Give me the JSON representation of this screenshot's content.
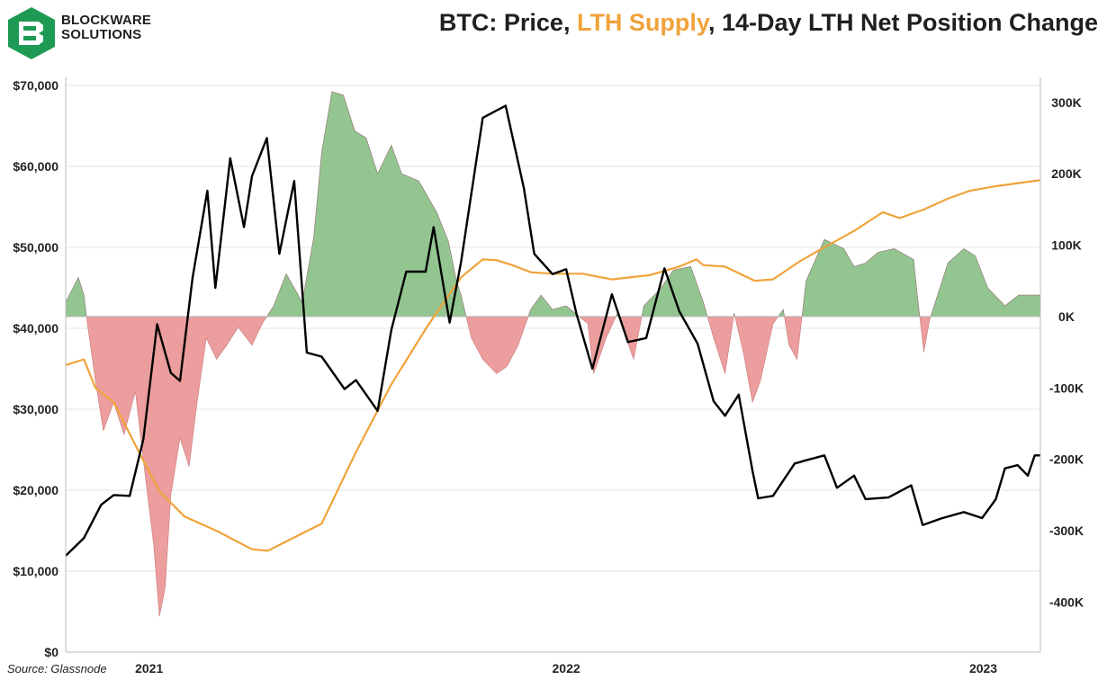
{
  "header": {
    "brand_line1": "BLOCKWARE",
    "brand_line2": "SOLUTIONS",
    "title_part1": "BTC: Price, ",
    "title_highlight": "LTH Supply",
    "title_part2": ", 14-Day LTH Net Position Change"
  },
  "source": "Source: Glassnode",
  "colors": {
    "price": "#000000",
    "lth_supply": "#f0a33a",
    "positive_fill": "#93c591",
    "negative_fill": "#ec9d9d",
    "brand_green": "#1e9a54"
  },
  "chart_data": {
    "type": "line",
    "x_ticks": [
      {
        "label": "2021",
        "date": "2021-01-01"
      },
      {
        "label": "2022",
        "date": "2022-01-01"
      },
      {
        "label": "2023",
        "date": "2023-01-01"
      }
    ],
    "x_range": [
      "2020-10-20",
      "2023-02-20"
    ],
    "left_axis": {
      "ticks": [
        "$0",
        "$10,000",
        "$20,000",
        "$30,000",
        "$40,000",
        "$50,000",
        "$60,000",
        "$70,000"
      ],
      "range": [
        0,
        70000
      ]
    },
    "right_axis": {
      "ticks": [
        "300K",
        "200K",
        "100K",
        "0K",
        "-100K",
        "-200K",
        "-300K",
        "-400K"
      ],
      "range": [
        -470000,
        335000
      ]
    },
    "grid": "horizontal",
    "series": [
      {
        "name": "Price",
        "axis": "left",
        "points": [
          [
            "2020-10-20",
            11900
          ],
          [
            "2020-11-05",
            14100
          ],
          [
            "2020-11-20",
            18200
          ],
          [
            "2020-12-01",
            19400
          ],
          [
            "2020-12-15",
            19300
          ],
          [
            "2020-12-27",
            26300
          ],
          [
            "2021-01-08",
            40500
          ],
          [
            "2021-01-20",
            34500
          ],
          [
            "2021-01-28",
            33500
          ],
          [
            "2021-02-08",
            46200
          ],
          [
            "2021-02-21",
            57000
          ],
          [
            "2021-02-28",
            45000
          ],
          [
            "2021-03-13",
            61000
          ],
          [
            "2021-03-25",
            52500
          ],
          [
            "2021-04-01",
            58800
          ],
          [
            "2021-04-14",
            63500
          ],
          [
            "2021-04-25",
            49200
          ],
          [
            "2021-05-08",
            58200
          ],
          [
            "2021-05-19",
            37000
          ],
          [
            "2021-06-01",
            36500
          ],
          [
            "2021-06-21",
            32500
          ],
          [
            "2021-07-01",
            33600
          ],
          [
            "2021-07-20",
            29800
          ],
          [
            "2021-08-01",
            39800
          ],
          [
            "2021-08-14",
            47000
          ],
          [
            "2021-08-31",
            47000
          ],
          [
            "2021-09-07",
            52500
          ],
          [
            "2021-09-21",
            40700
          ],
          [
            "2021-10-01",
            48200
          ],
          [
            "2021-10-20",
            66000
          ],
          [
            "2021-11-09",
            67500
          ],
          [
            "2021-11-25",
            57300
          ],
          [
            "2021-12-04",
            49200
          ],
          [
            "2021-12-20",
            46700
          ],
          [
            "2022-01-01",
            47300
          ],
          [
            "2022-01-10",
            41800
          ],
          [
            "2022-01-24",
            35000
          ],
          [
            "2022-02-10",
            44200
          ],
          [
            "2022-02-24",
            38300
          ],
          [
            "2022-03-12",
            38800
          ],
          [
            "2022-03-28",
            47400
          ],
          [
            "2022-04-10",
            42100
          ],
          [
            "2022-04-26",
            38100
          ],
          [
            "2022-05-10",
            31000
          ],
          [
            "2022-05-20",
            29200
          ],
          [
            "2022-06-01",
            31800
          ],
          [
            "2022-06-13",
            22400
          ],
          [
            "2022-06-18",
            19000
          ],
          [
            "2022-07-01",
            19300
          ],
          [
            "2022-07-20",
            23300
          ],
          [
            "2022-07-30",
            23700
          ],
          [
            "2022-08-15",
            24300
          ],
          [
            "2022-08-26",
            20300
          ],
          [
            "2022-09-10",
            21800
          ],
          [
            "2022-09-20",
            18900
          ],
          [
            "2022-10-10",
            19100
          ],
          [
            "2022-10-30",
            20600
          ],
          [
            "2022-11-09",
            15700
          ],
          [
            "2022-11-25",
            16500
          ],
          [
            "2022-12-15",
            17300
          ],
          [
            "2022-12-31",
            16550
          ],
          [
            "2023-01-12",
            18900
          ],
          [
            "2023-01-20",
            22700
          ],
          [
            "2023-01-31",
            23100
          ],
          [
            "2023-02-09",
            21800
          ],
          [
            "2023-02-15",
            24300
          ],
          [
            "2023-02-20",
            24300
          ]
        ]
      },
      {
        "name": "LTH Supply",
        "axis": "right",
        "points": [
          [
            "2020-10-20",
            -68000
          ],
          [
            "2020-11-05",
            -60000
          ],
          [
            "2020-11-15",
            -100000
          ],
          [
            "2020-12-01",
            -120000
          ],
          [
            "2020-12-20",
            -180000
          ],
          [
            "2021-01-10",
            -245000
          ],
          [
            "2021-02-01",
            -280000
          ],
          [
            "2021-03-01",
            -300000
          ],
          [
            "2021-04-01",
            -326000
          ],
          [
            "2021-04-15",
            -328000
          ],
          [
            "2021-05-01",
            -315000
          ],
          [
            "2021-06-01",
            -290000
          ],
          [
            "2021-07-01",
            -190000
          ],
          [
            "2021-08-01",
            -95000
          ],
          [
            "2021-09-01",
            -15000
          ],
          [
            "2021-10-01",
            55000
          ],
          [
            "2021-10-20",
            80000
          ],
          [
            "2021-11-01",
            79000
          ],
          [
            "2021-11-15",
            72000
          ],
          [
            "2021-12-01",
            62000
          ],
          [
            "2021-12-20",
            60000
          ],
          [
            "2022-01-15",
            60000
          ],
          [
            "2022-02-10",
            52000
          ],
          [
            "2022-03-15",
            58000
          ],
          [
            "2022-04-10",
            70000
          ],
          [
            "2022-04-25",
            80000
          ],
          [
            "2022-05-01",
            72000
          ],
          [
            "2022-05-20",
            70000
          ],
          [
            "2022-06-15",
            50000
          ],
          [
            "2022-07-01",
            52000
          ],
          [
            "2022-07-25",
            78000
          ],
          [
            "2022-08-15",
            97000
          ],
          [
            "2022-09-10",
            120000
          ],
          [
            "2022-10-05",
            146000
          ],
          [
            "2022-10-20",
            138000
          ],
          [
            "2022-11-10",
            150000
          ],
          [
            "2022-12-01",
            165000
          ],
          [
            "2022-12-20",
            176000
          ],
          [
            "2023-01-10",
            182000
          ],
          [
            "2023-02-01",
            187000
          ],
          [
            "2023-02-20",
            191000
          ]
        ]
      },
      {
        "name": "14-Day LTH Net Position Change",
        "axis": "right",
        "fill": "zero",
        "points": [
          [
            "2020-10-20",
            20000
          ],
          [
            "2020-10-31",
            55000
          ],
          [
            "2020-11-05",
            30000
          ],
          [
            "2020-11-08",
            -10000
          ],
          [
            "2020-11-15",
            -90000
          ],
          [
            "2020-11-22",
            -160000
          ],
          [
            "2020-12-01",
            -120000
          ],
          [
            "2020-12-10",
            -165000
          ],
          [
            "2020-12-20",
            -105000
          ],
          [
            "2020-12-28",
            -215000
          ],
          [
            "2021-01-05",
            -320000
          ],
          [
            "2021-01-10",
            -420000
          ],
          [
            "2021-01-15",
            -380000
          ],
          [
            "2021-01-20",
            -250000
          ],
          [
            "2021-01-28",
            -170000
          ],
          [
            "2021-02-05",
            -210000
          ],
          [
            "2021-02-12",
            -120000
          ],
          [
            "2021-02-20",
            -30000
          ],
          [
            "2021-03-01",
            -60000
          ],
          [
            "2021-03-10",
            -40000
          ],
          [
            "2021-03-20",
            -15000
          ],
          [
            "2021-04-01",
            -40000
          ],
          [
            "2021-04-10",
            -10000
          ],
          [
            "2021-04-20",
            15000
          ],
          [
            "2021-05-01",
            60000
          ],
          [
            "2021-05-15",
            20000
          ],
          [
            "2021-05-25",
            110000
          ],
          [
            "2021-06-01",
            230000
          ],
          [
            "2021-06-10",
            315000
          ],
          [
            "2021-06-20",
            310000
          ],
          [
            "2021-06-30",
            260000
          ],
          [
            "2021-07-10",
            250000
          ],
          [
            "2021-07-20",
            200000
          ],
          [
            "2021-08-01",
            240000
          ],
          [
            "2021-08-10",
            200000
          ],
          [
            "2021-08-25",
            190000
          ],
          [
            "2021-09-10",
            145000
          ],
          [
            "2021-09-20",
            105000
          ],
          [
            "2021-09-27",
            50000
          ],
          [
            "2021-10-01",
            30000
          ],
          [
            "2021-10-10",
            -30000
          ],
          [
            "2021-10-20",
            -60000
          ],
          [
            "2021-11-01",
            -80000
          ],
          [
            "2021-11-10",
            -70000
          ],
          [
            "2021-11-20",
            -40000
          ],
          [
            "2021-12-01",
            10000
          ],
          [
            "2021-12-10",
            30000
          ],
          [
            "2021-12-20",
            10000
          ],
          [
            "2022-01-01",
            15000
          ],
          [
            "2022-01-20",
            -10000
          ],
          [
            "2022-01-25",
            -80000
          ],
          [
            "2022-02-05",
            -30000
          ],
          [
            "2022-02-15",
            5000
          ],
          [
            "2022-03-01",
            -60000
          ],
          [
            "2022-03-10",
            15000
          ],
          [
            "2022-03-25",
            40000
          ],
          [
            "2022-04-05",
            65000
          ],
          [
            "2022-04-20",
            70000
          ],
          [
            "2022-05-01",
            20000
          ],
          [
            "2022-05-10",
            -30000
          ],
          [
            "2022-05-20",
            -80000
          ],
          [
            "2022-05-28",
            5000
          ],
          [
            "2022-06-05",
            -50000
          ],
          [
            "2022-06-13",
            -120000
          ],
          [
            "2022-06-20",
            -90000
          ],
          [
            "2022-07-01",
            -10000
          ],
          [
            "2022-07-10",
            10000
          ],
          [
            "2022-07-15",
            -40000
          ],
          [
            "2022-07-22",
            -60000
          ],
          [
            "2022-07-30",
            50000
          ],
          [
            "2022-08-15",
            108000
          ],
          [
            "2022-09-01",
            95000
          ],
          [
            "2022-09-10",
            70000
          ],
          [
            "2022-09-20",
            75000
          ],
          [
            "2022-10-01",
            90000
          ],
          [
            "2022-10-15",
            95000
          ],
          [
            "2022-11-01",
            80000
          ],
          [
            "2022-11-05",
            20000
          ],
          [
            "2022-11-10",
            -50000
          ],
          [
            "2022-11-15",
            -5000
          ],
          [
            "2022-12-01",
            75000
          ],
          [
            "2022-12-15",
            95000
          ],
          [
            "2022-12-25",
            85000
          ],
          [
            "2023-01-05",
            40000
          ],
          [
            "2023-01-20",
            15000
          ],
          [
            "2023-02-01",
            30000
          ],
          [
            "2023-02-20",
            30000
          ]
        ]
      }
    ]
  }
}
